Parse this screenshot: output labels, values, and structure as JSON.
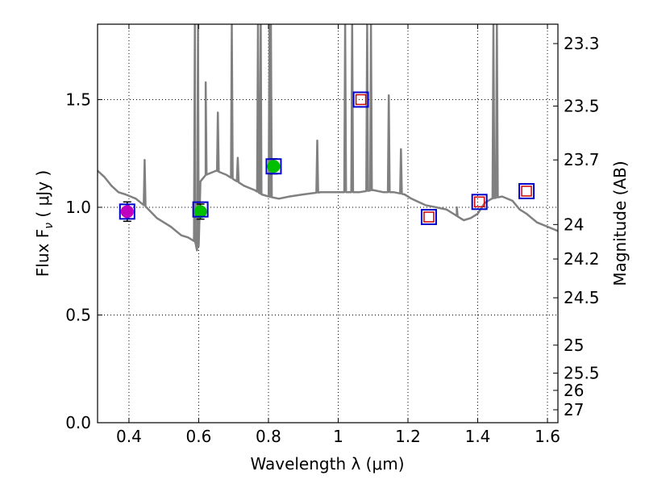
{
  "chart_data": {
    "type": "scatter",
    "xlabel": "Wavelength  λ (μm)",
    "ylabel": "Flux  F",
    "ylabel_sub": "ν",
    "ylabel_unit": "  ( μJy )",
    "right_ylabel": "Magnitude (AB)",
    "xlim": [
      0.31,
      1.63
    ],
    "ylim": [
      0.0,
      1.85
    ],
    "grid": true,
    "x_ticks": [
      0.4,
      0.6,
      0.8,
      1.0,
      1.2,
      1.4,
      1.6
    ],
    "x_tick_labels": [
      "0.4",
      "0.6",
      "0.8",
      "1",
      "1.2",
      "1.4",
      "1.6"
    ],
    "y_ticks": [
      0.0,
      0.5,
      1.0,
      1.5
    ],
    "y_tick_labels": [
      "0.0",
      "0.5",
      "1.0",
      "1.5"
    ],
    "right_ticks": [
      {
        "label": "23.3",
        "flux": 1.76
      },
      {
        "label": "23.5",
        "flux": 1.47
      },
      {
        "label": "23.7",
        "flux": 1.22
      },
      {
        "label": "24",
        "flux": 0.92
      },
      {
        "label": "24.2",
        "flux": 0.76
      },
      {
        "label": "24.5",
        "flux": 0.58
      },
      {
        "label": "25",
        "flux": 0.36
      },
      {
        "label": "25.5",
        "flux": 0.23
      },
      {
        "label": "26",
        "flux": 0.15
      },
      {
        "label": "27",
        "flux": 0.06
      }
    ],
    "model_spectrum": {
      "color": "#808080",
      "continuum": [
        [
          0.31,
          1.17
        ],
        [
          0.33,
          1.14
        ],
        [
          0.35,
          1.1
        ],
        [
          0.37,
          1.07
        ],
        [
          0.39,
          1.06
        ],
        [
          0.42,
          1.04
        ],
        [
          0.45,
          1.0
        ],
        [
          0.48,
          0.95
        ],
        [
          0.5,
          0.93
        ],
        [
          0.52,
          0.91
        ],
        [
          0.55,
          0.87
        ],
        [
          0.57,
          0.86
        ],
        [
          0.59,
          0.84
        ],
        [
          0.595,
          0.8
        ],
        [
          0.6,
          0.82
        ],
        [
          0.605,
          1.12
        ],
        [
          0.62,
          1.15
        ],
        [
          0.65,
          1.17
        ],
        [
          0.68,
          1.15
        ],
        [
          0.7,
          1.13
        ],
        [
          0.73,
          1.1
        ],
        [
          0.76,
          1.08
        ],
        [
          0.78,
          1.06
        ],
        [
          0.8,
          1.05
        ],
        [
          0.83,
          1.04
        ],
        [
          0.86,
          1.05
        ],
        [
          0.9,
          1.06
        ],
        [
          0.95,
          1.07
        ],
        [
          1.0,
          1.07
        ],
        [
          1.03,
          1.07
        ],
        [
          1.06,
          1.07
        ],
        [
          1.1,
          1.08
        ],
        [
          1.13,
          1.07
        ],
        [
          1.16,
          1.07
        ],
        [
          1.19,
          1.06
        ],
        [
          1.21,
          1.04
        ],
        [
          1.25,
          1.01
        ],
        [
          1.28,
          1.0
        ],
        [
          1.31,
          0.99
        ],
        [
          1.34,
          0.96
        ],
        [
          1.36,
          0.94
        ],
        [
          1.38,
          0.95
        ],
        [
          1.4,
          0.97
        ],
        [
          1.42,
          1.02
        ],
        [
          1.44,
          1.04
        ],
        [
          1.47,
          1.05
        ],
        [
          1.5,
          1.03
        ],
        [
          1.52,
          0.99
        ],
        [
          1.54,
          0.97
        ],
        [
          1.57,
          0.93
        ],
        [
          1.6,
          0.91
        ],
        [
          1.63,
          0.89
        ]
      ],
      "emission_lines": [
        [
          0.445,
          1.22
        ],
        [
          0.589,
          1.85
        ],
        [
          0.598,
          1.85
        ],
        [
          0.62,
          1.58
        ],
        [
          0.655,
          1.44
        ],
        [
          0.695,
          1.85
        ],
        [
          0.712,
          1.23
        ],
        [
          0.77,
          1.85
        ],
        [
          0.778,
          1.85
        ],
        [
          0.803,
          1.85
        ],
        [
          0.807,
          1.85
        ],
        [
          0.94,
          1.31
        ],
        [
          1.02,
          1.85
        ],
        [
          1.04,
          1.85
        ],
        [
          1.083,
          1.85
        ],
        [
          1.094,
          1.85
        ],
        [
          1.145,
          1.52
        ],
        [
          1.18,
          1.27
        ],
        [
          1.282,
          1.0
        ],
        [
          1.34,
          1.0
        ],
        [
          1.445,
          1.85
        ],
        [
          1.455,
          1.85
        ]
      ]
    },
    "observed": [
      {
        "x": 0.395,
        "y": 0.98,
        "err": 0.045,
        "color": "#bf00bf"
      },
      {
        "x": 0.605,
        "y": 0.98,
        "err": 0.035,
        "color": "#00bf00"
      },
      {
        "x": 0.815,
        "y": 1.19,
        "err": 0.035,
        "color": "#00bf00"
      }
    ],
    "model_photometry": [
      {
        "x": 0.395,
        "y": 0.98
      },
      {
        "x": 0.605,
        "y": 0.99
      },
      {
        "x": 0.815,
        "y": 1.19
      },
      {
        "x": 1.065,
        "y": 1.5
      },
      {
        "x": 1.26,
        "y": 0.955
      },
      {
        "x": 1.405,
        "y": 1.025
      },
      {
        "x": 1.54,
        "y": 1.075
      }
    ],
    "upper_limits": [
      {
        "x": 1.065,
        "y": 1.5
      },
      {
        "x": 1.26,
        "y": 0.955
      },
      {
        "x": 1.405,
        "y": 1.025
      },
      {
        "x": 1.54,
        "y": 1.075
      }
    ]
  }
}
